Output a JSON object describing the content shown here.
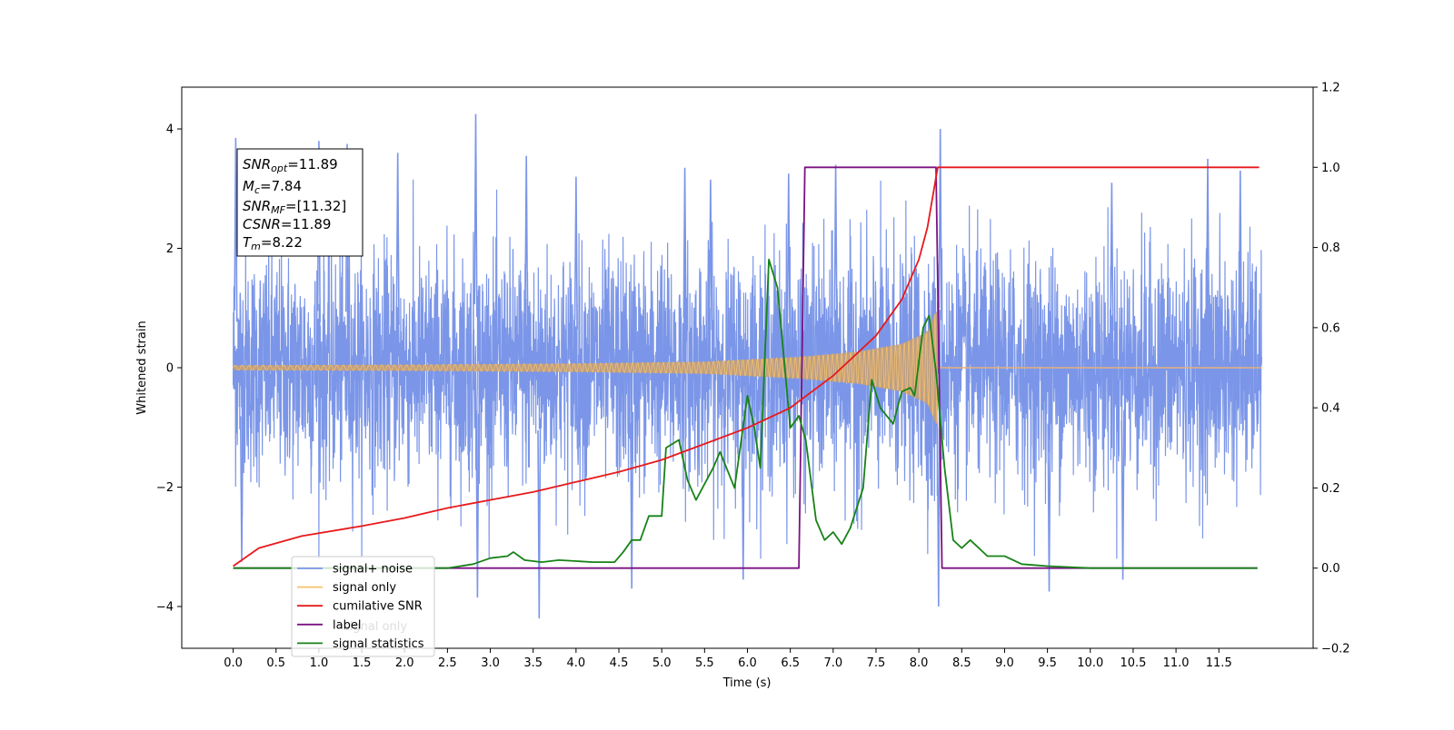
{
  "chart_data": {
    "type": "line",
    "xlabel": "Time (s)",
    "ylabel": "Whitened strain",
    "xlim": [
      -0.6,
      12.6
    ],
    "ylim_left": [
      -4.7,
      4.7
    ],
    "ylim_right": [
      -0.2,
      1.2
    ],
    "x_ticks": [
      "0.0",
      "0.5",
      "1.0",
      "1.5",
      "2.0",
      "2.5",
      "3.0",
      "3.5",
      "4.0",
      "4.5",
      "5.0",
      "5.5",
      "6.0",
      "6.5",
      "7.0",
      "7.5",
      "8.0",
      "8.5",
      "9.0",
      "9.5",
      "10.0",
      "10.5",
      "11.0",
      "11.5"
    ],
    "y_left_ticks": [
      "4",
      "2",
      "0",
      "−2",
      "−4"
    ],
    "y_right_ticks": [
      "1.2",
      "1.0",
      "0.8",
      "0.6",
      "0.4",
      "0.2",
      "0.0",
      "−0.2"
    ],
    "grid": false,
    "legend_position": "lower-left",
    "legend": [
      {
        "label": "signal+ noise",
        "color": "#7b96e8"
      },
      {
        "label": "signal only",
        "color": "#f5c06a"
      },
      {
        "label": "cumilative SNR",
        "color": "#e8191b"
      },
      {
        "label": "label",
        "color": "#7b1283"
      },
      {
        "label": "signal statistics",
        "color": "#178217"
      }
    ],
    "legend_overlap_text": "signal only",
    "info_box": {
      "snr_opt": {
        "sym": "SNR",
        "sub": "opt",
        "val": "=11.89"
      },
      "mc": {
        "sym": "M",
        "sub": "c",
        "val": "=7.84"
      },
      "snr_mf": {
        "sym": "SNR",
        "sub": "MF",
        "val": "=[11.32]"
      },
      "csnr": {
        "sym": "CSNR",
        "val": "=11.89"
      },
      "tm": {
        "sym": "T",
        "sub": "m",
        "val": "=8.22"
      }
    },
    "signal_noise": {
      "axis": "left",
      "t_range": [
        0.0,
        12.0
      ],
      "noise_std": 1.0,
      "spike_peaks": [
        [
          0.03,
          3.85
        ],
        [
          1.0,
          3.8
        ],
        [
          1.33,
          3.75
        ],
        [
          1.92,
          3.6
        ],
        [
          2.83,
          4.25
        ],
        [
          3.42,
          3.55
        ],
        [
          4.0,
          3.2
        ],
        [
          5.27,
          3.35
        ],
        [
          5.57,
          3.15
        ],
        [
          6.48,
          3.25
        ],
        [
          7.03,
          3.4
        ],
        [
          8.25,
          4.0
        ],
        [
          10.25,
          3.1
        ],
        [
          11.37,
          3.5
        ],
        [
          11.75,
          3.3
        ],
        [
          2.85,
          -3.85
        ],
        [
          3.57,
          -4.2
        ],
        [
          4.65,
          -3.7
        ],
        [
          5.95,
          -3.55
        ],
        [
          8.23,
          -4.0
        ],
        [
          9.52,
          -3.75
        ],
        [
          10.38,
          -3.55
        ],
        [
          0.1,
          -3.25
        ]
      ]
    },
    "signal_only": {
      "axis": "left",
      "t_range": [
        0.0,
        8.22
      ],
      "envelope": [
        [
          0.0,
          0.04
        ],
        [
          2.0,
          0.05
        ],
        [
          4.0,
          0.07
        ],
        [
          5.5,
          0.1
        ],
        [
          6.6,
          0.18
        ],
        [
          7.3,
          0.27
        ],
        [
          7.8,
          0.4
        ],
        [
          8.1,
          0.6
        ],
        [
          8.2,
          0.95
        ],
        [
          8.22,
          0.95
        ]
      ]
    },
    "cumulative_snr": {
      "axis": "right",
      "points": [
        [
          0.0,
          0.005
        ],
        [
          0.3,
          0.05
        ],
        [
          0.8,
          0.08
        ],
        [
          1.5,
          0.105
        ],
        [
          2.0,
          0.125
        ],
        [
          2.5,
          0.15
        ],
        [
          3.0,
          0.17
        ],
        [
          3.5,
          0.19
        ],
        [
          4.0,
          0.215
        ],
        [
          4.5,
          0.24
        ],
        [
          5.0,
          0.27
        ],
        [
          5.5,
          0.31
        ],
        [
          6.0,
          0.35
        ],
        [
          6.5,
          0.4
        ],
        [
          7.0,
          0.48
        ],
        [
          7.5,
          0.58
        ],
        [
          7.8,
          0.67
        ],
        [
          8.0,
          0.77
        ],
        [
          8.1,
          0.85
        ],
        [
          8.18,
          0.95
        ],
        [
          8.22,
          1.0
        ],
        [
          11.97,
          1.0
        ]
      ]
    },
    "label": {
      "axis": "right",
      "points": [
        [
          0.0,
          0.0
        ],
        [
          6.6,
          0.0
        ],
        [
          6.67,
          1.0
        ],
        [
          8.2,
          1.0
        ],
        [
          8.27,
          0.0
        ],
        [
          11.95,
          0.0
        ]
      ]
    },
    "signal_statistics": {
      "axis": "right",
      "points": [
        [
          0.0,
          0.0
        ],
        [
          2.5,
          0.0
        ],
        [
          2.8,
          0.01
        ],
        [
          3.0,
          0.025
        ],
        [
          3.2,
          0.03
        ],
        [
          3.27,
          0.04
        ],
        [
          3.4,
          0.02
        ],
        [
          3.6,
          0.015
        ],
        [
          3.8,
          0.02
        ],
        [
          4.2,
          0.015
        ],
        [
          4.45,
          0.015
        ],
        [
          4.55,
          0.04
        ],
        [
          4.65,
          0.07
        ],
        [
          4.75,
          0.07
        ],
        [
          4.85,
          0.13
        ],
        [
          5.0,
          0.13
        ],
        [
          5.05,
          0.3
        ],
        [
          5.2,
          0.32
        ],
        [
          5.3,
          0.22
        ],
        [
          5.4,
          0.17
        ],
        [
          5.6,
          0.25
        ],
        [
          5.68,
          0.29
        ],
        [
          5.85,
          0.2
        ],
        [
          6.0,
          0.43
        ],
        [
          6.08,
          0.35
        ],
        [
          6.15,
          0.25
        ],
        [
          6.25,
          0.77
        ],
        [
          6.35,
          0.7
        ],
        [
          6.5,
          0.35
        ],
        [
          6.6,
          0.38
        ],
        [
          6.68,
          0.32
        ],
        [
          6.8,
          0.12
        ],
        [
          6.9,
          0.07
        ],
        [
          7.0,
          0.09
        ],
        [
          7.1,
          0.06
        ],
        [
          7.2,
          0.1
        ],
        [
          7.35,
          0.2
        ],
        [
          7.45,
          0.47
        ],
        [
          7.55,
          0.4
        ],
        [
          7.7,
          0.36
        ],
        [
          7.8,
          0.44
        ],
        [
          7.9,
          0.45
        ],
        [
          7.95,
          0.43
        ],
        [
          8.05,
          0.6
        ],
        [
          8.12,
          0.63
        ],
        [
          8.2,
          0.49
        ],
        [
          8.3,
          0.25
        ],
        [
          8.4,
          0.07
        ],
        [
          8.5,
          0.05
        ],
        [
          8.6,
          0.07
        ],
        [
          8.8,
          0.03
        ],
        [
          9.0,
          0.03
        ],
        [
          9.2,
          0.01
        ],
        [
          9.5,
          0.005
        ],
        [
          10.0,
          0.0
        ],
        [
          11.95,
          0.0
        ]
      ]
    }
  }
}
